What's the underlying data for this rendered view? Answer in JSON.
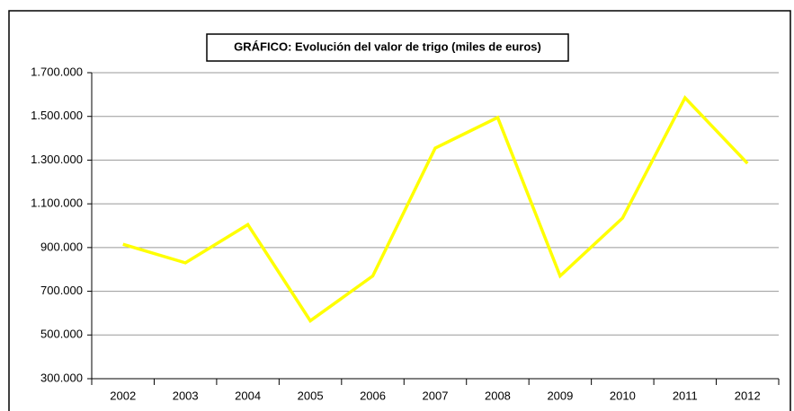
{
  "chart_data": {
    "type": "line",
    "title": "GRÁFICO: Evolución del valor de trigo (miles de euros)",
    "categories": [
      "2002",
      "2003",
      "2004",
      "2005",
      "2006",
      "2007",
      "2008",
      "2009",
      "2010",
      "2011",
      "2012"
    ],
    "series": [
      {
        "color": "#ffff00",
        "values": [
          915000,
          830000,
          1005000,
          565000,
          770000,
          1355000,
          1495000,
          770000,
          1035000,
          1585000,
          1285000
        ]
      }
    ],
    "ylim": [
      300000,
      1700000
    ],
    "yticks": [
      {
        "value": 300000,
        "label": "300.000"
      },
      {
        "value": 500000,
        "label": "500.000"
      },
      {
        "value": 700000,
        "label": "700.000"
      },
      {
        "value": 900000,
        "label": "900.000"
      },
      {
        "value": 1100000,
        "label": "1.100.000"
      },
      {
        "value": 1300000,
        "label": "1.300.000"
      },
      {
        "value": 1500000,
        "label": "1.500.000"
      },
      {
        "value": 1700000,
        "label": "1.700.000"
      }
    ],
    "grid": true
  }
}
